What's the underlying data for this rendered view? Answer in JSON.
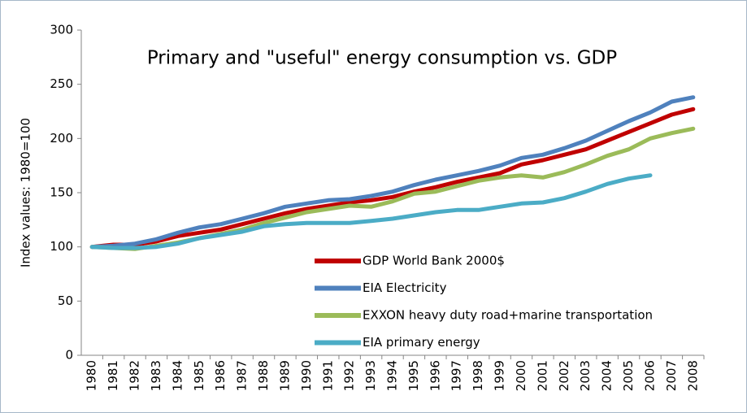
{
  "chart_data": {
    "type": "line",
    "title": "Primary and \"useful\" energy consumption vs. GDP",
    "y_label": "Index values: 1980=100",
    "categories": [
      "1980",
      "1981",
      "1982",
      "1983",
      "1984",
      "1985",
      "1986",
      "1987",
      "1988",
      "1989",
      "1990",
      "1991",
      "1992",
      "1993",
      "1994",
      "1995",
      "1996",
      "1997",
      "1998",
      "1999",
      "2000",
      "2001",
      "2002",
      "2003",
      "2004",
      "2005",
      "2006",
      "2007",
      "2008"
    ],
    "series": [
      {
        "name": "GDP World Bank 2000$",
        "color": "#c00000",
        "values": [
          100,
          102,
          102,
          105,
          110,
          113,
          116,
          121,
          126,
          131,
          135,
          138,
          141,
          143,
          146,
          151,
          155,
          160,
          164,
          168,
          176,
          180,
          185,
          190,
          198,
          206,
          214,
          222,
          227
        ]
      },
      {
        "name": "EIA Electricity",
        "color": "#4f81bd",
        "values": [
          100,
          101,
          103,
          107,
          113,
          118,
          121,
          126,
          131,
          137,
          140,
          143,
          144,
          147,
          151,
          157,
          162,
          166,
          170,
          175,
          182,
          185,
          191,
          198,
          207,
          216,
          224,
          234,
          238
        ]
      },
      {
        "name": "EXXON heavy duty road+marine transportation",
        "color": "#9bbb59",
        "values": [
          100,
          99,
          98,
          101,
          104,
          108,
          112,
          116,
          122,
          127,
          132,
          135,
          138,
          137,
          142,
          149,
          151,
          156,
          161,
          164,
          166,
          164,
          169,
          176,
          184,
          190,
          200,
          205,
          209
        ]
      },
      {
        "name": "EIA primary energy",
        "color": "#4bacc6",
        "values": [
          100,
          99,
          99,
          100,
          103,
          108,
          111,
          114,
          119,
          121,
          122,
          122,
          122,
          124,
          126,
          129,
          132,
          134,
          134,
          137,
          140,
          141,
          145,
          151,
          158,
          163,
          166,
          null,
          null
        ]
      }
    ],
    "ylim": [
      0,
      300
    ],
    "yticks": [
      0,
      50,
      100,
      150,
      200,
      250,
      300
    ],
    "grid": false,
    "legend": "center"
  }
}
